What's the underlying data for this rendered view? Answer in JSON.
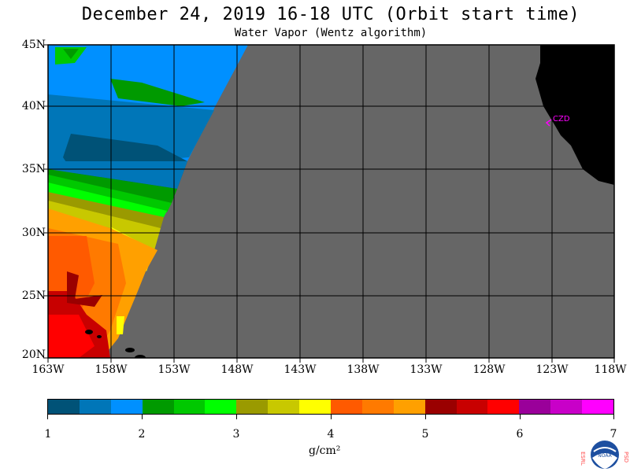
{
  "title": "December 24, 2019  16-18 UTC  (Orbit start time)",
  "subtitle": "Water Vapor (Wentz algorithm)",
  "lat_labels": [
    "45N",
    "40N",
    "35N",
    "30N",
    "25N",
    "20N"
  ],
  "lon_labels": [
    "163W",
    "158W",
    "153W",
    "148W",
    "143W",
    "138W",
    "133W",
    "128W",
    "123W",
    "118W"
  ],
  "colorbar": {
    "colors": [
      "#005277",
      "#0076b8",
      "#0090ff",
      "#009a00",
      "#00c800",
      "#00ff00",
      "#9a9a00",
      "#c8c800",
      "#ffff00",
      "#ff5a00",
      "#ff7a00",
      "#ffa000",
      "#9a0000",
      "#c80000",
      "#ff0000",
      "#9a009a",
      "#c800c8",
      "#ff00ff"
    ],
    "tick_labels": [
      "1",
      "2",
      "3",
      "4",
      "5",
      "6",
      "7"
    ]
  },
  "units": "g/cm²",
  "city_label": "CZD",
  "logo": {
    "left_text": "ESRL",
    "right_text": "PSD",
    "center_text": "NOAA"
  },
  "map_colors": {
    "nodata": "#666666",
    "land": "#000000",
    "grid": "#000000"
  }
}
